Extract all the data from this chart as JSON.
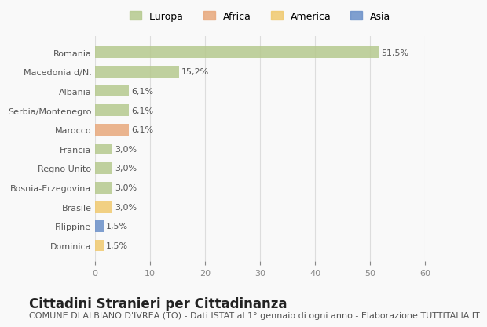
{
  "countries": [
    "Romania",
    "Macedonia d/N.",
    "Albania",
    "Serbia/Montenegro",
    "Marocco",
    "Francia",
    "Regno Unito",
    "Bosnia-Erzegovina",
    "Brasile",
    "Filippine",
    "Dominica"
  ],
  "values": [
    51.5,
    15.2,
    6.1,
    6.1,
    6.1,
    3.0,
    3.0,
    3.0,
    3.0,
    1.5,
    1.5
  ],
  "labels": [
    "51,5%",
    "15,2%",
    "6,1%",
    "6,1%",
    "6,1%",
    "3,0%",
    "3,0%",
    "3,0%",
    "3,0%",
    "1,5%",
    "1,5%"
  ],
  "continents": [
    "Europa",
    "Europa",
    "Europa",
    "Europa",
    "Africa",
    "Europa",
    "Europa",
    "Europa",
    "America",
    "Asia",
    "America"
  ],
  "colors": {
    "Europa": "#b5c98e",
    "Africa": "#e8a87c",
    "America": "#f0c96e",
    "Asia": "#6a8fc8"
  },
  "legend_colors": {
    "Europa": "#b5c98e",
    "Africa": "#e8a87c",
    "America": "#f0c96e",
    "Asia": "#6a8fc8"
  },
  "xlim": [
    0,
    60
  ],
  "xticks": [
    0,
    10,
    20,
    30,
    40,
    50,
    60
  ],
  "title": "Cittadini Stranieri per Cittadinanza",
  "subtitle": "COMUNE DI ALBIANO D'IVREA (TO) - Dati ISTAT al 1° gennaio di ogni anno - Elaborazione TUTTITALIA.IT",
  "background_color": "#f9f9f9",
  "bar_height": 0.6,
  "title_fontsize": 12,
  "subtitle_fontsize": 8,
  "label_fontsize": 8,
  "tick_fontsize": 8,
  "legend_fontsize": 9
}
